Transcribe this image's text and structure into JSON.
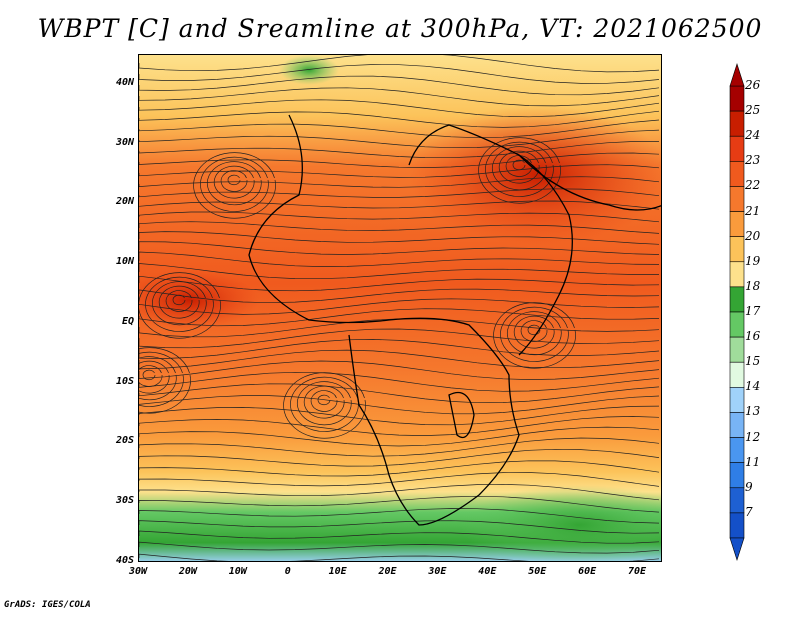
{
  "title": "WBPT [C] and Sreamline at 300hPa, VT: 2021062500",
  "credit": "GrADS: IGES/COLA",
  "map": {
    "lat_labels": [
      "40N",
      "30N",
      "20N",
      "10N",
      "EQ",
      "10S",
      "20S",
      "30S",
      "40S"
    ],
    "lat_values": [
      40,
      30,
      20,
      10,
      0,
      -10,
      -20,
      -30,
      -40
    ],
    "lon_labels": [
      "30W",
      "20W",
      "10W",
      "0",
      "10E",
      "20E",
      "30E",
      "40E",
      "50E",
      "60E",
      "70E"
    ],
    "lon_values": [
      -30,
      -20,
      -10,
      0,
      10,
      20,
      30,
      40,
      50,
      60,
      70
    ],
    "lon_range": [
      -30,
      75
    ],
    "lat_range": [
      -40,
      45
    ]
  },
  "colorbar": {
    "labels": [
      "26",
      "25",
      "24",
      "23",
      "22",
      "21",
      "20",
      "19",
      "18",
      "17",
      "16",
      "15",
      "14",
      "13",
      "12",
      "11",
      "9",
      "7"
    ],
    "colors": [
      "#a50000",
      "#c81e00",
      "#e63c14",
      "#f05a1e",
      "#f5782d",
      "#fa9b3c",
      "#fcc35a",
      "#fde18c",
      "#34a534",
      "#64c864",
      "#a0dc9b",
      "#e1fae1",
      "#a0d2fa",
      "#78b4f5",
      "#4a96f0",
      "#2f7ee6",
      "#1e60d2",
      "#1450c8"
    ]
  }
}
